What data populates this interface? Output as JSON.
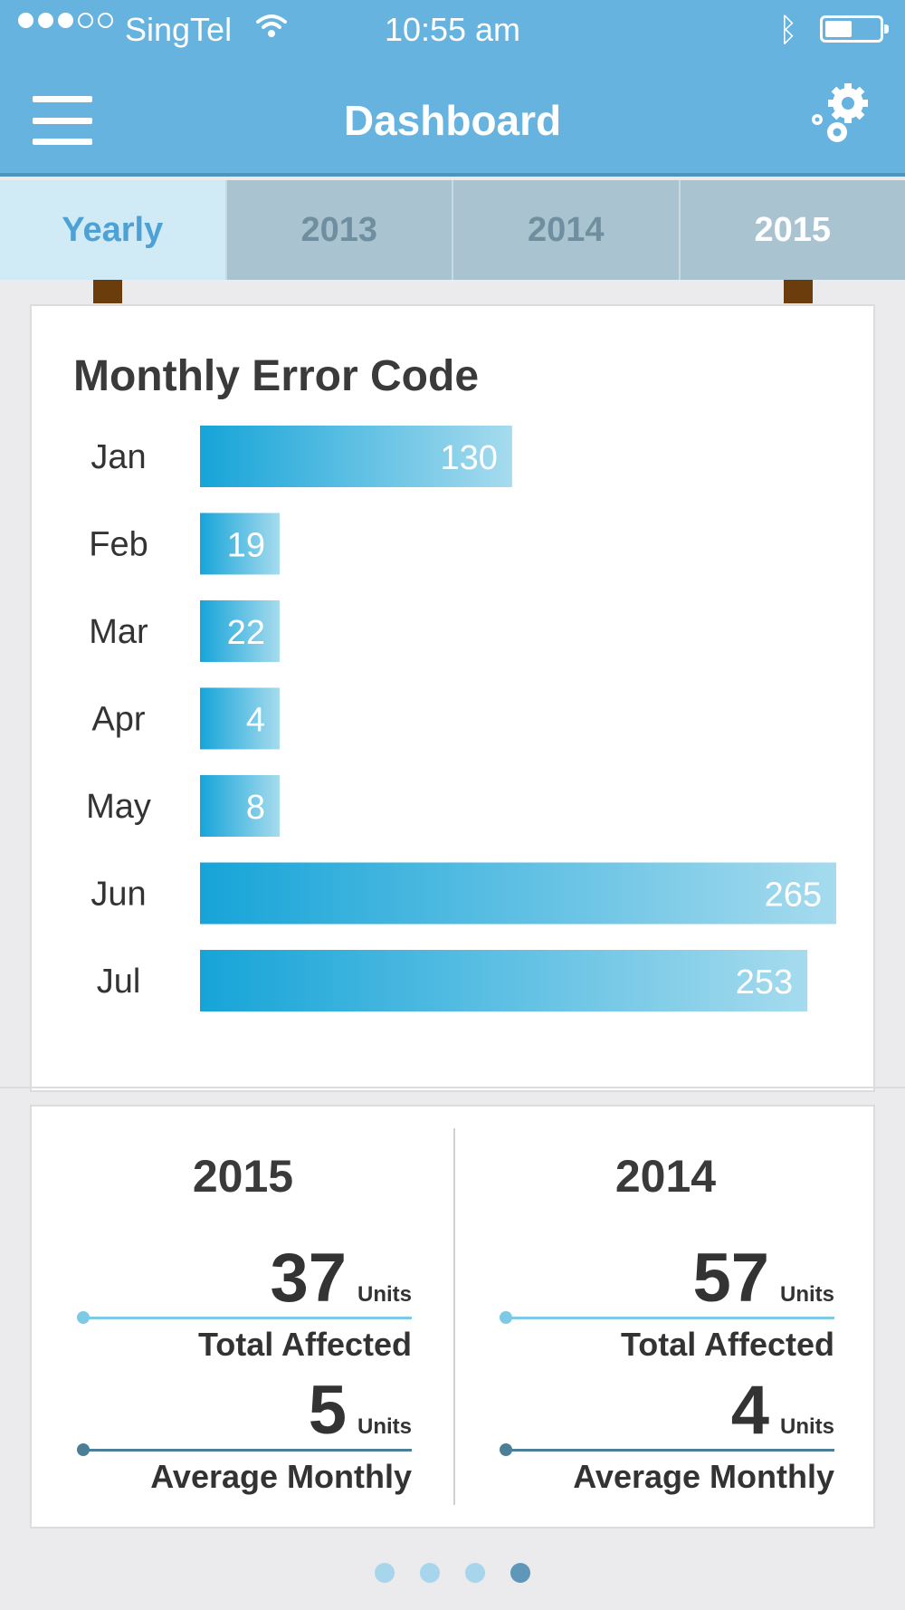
{
  "status_bar": {
    "carrier": "SingTel",
    "time": "10:55 am",
    "bluetooth_symbol": "ᛒ",
    "signal_strength_of_5": 3,
    "battery_level": 0.5
  },
  "header": {
    "title": "Dashboard",
    "menu_icon": "hamburger-menu-icon",
    "settings_icon": "gears-icon"
  },
  "tabs": [
    {
      "label": "Yearly",
      "active": true
    },
    {
      "label": "2013",
      "active": false
    },
    {
      "label": "2014",
      "active": false
    },
    {
      "label": "2015",
      "active": false
    }
  ],
  "chart_data": {
    "type": "bar",
    "orientation": "horizontal",
    "title": "Monthly Error Code",
    "categories": [
      "Jan",
      "Feb",
      "Mar",
      "Apr",
      "May",
      "Jun",
      "Jul"
    ],
    "values": [
      130,
      19,
      22,
      4,
      8,
      265,
      253
    ],
    "data_labels": [
      "130",
      "19",
      "22",
      "4",
      "8",
      "265",
      "253"
    ],
    "colors": {
      "bar_start": "#16a4d8",
      "bar_end": "#a6dbee",
      "label": "#ffffff"
    }
  },
  "summary": {
    "columns": [
      {
        "year": "2015",
        "total_affected": {
          "value": "37",
          "unit": "Units",
          "label": "Total Affected"
        },
        "average_monthly": {
          "value": "5",
          "unit": "Units",
          "label": "Average Monthly"
        }
      },
      {
        "year": "2014",
        "total_affected": {
          "value": "57",
          "unit": "Units",
          "label": "Total Affected"
        },
        "average_monthly": {
          "value": "4",
          "unit": "Units",
          "label": "Average Monthly"
        }
      }
    ]
  },
  "pager": {
    "count": 4,
    "active_index": 3
  }
}
